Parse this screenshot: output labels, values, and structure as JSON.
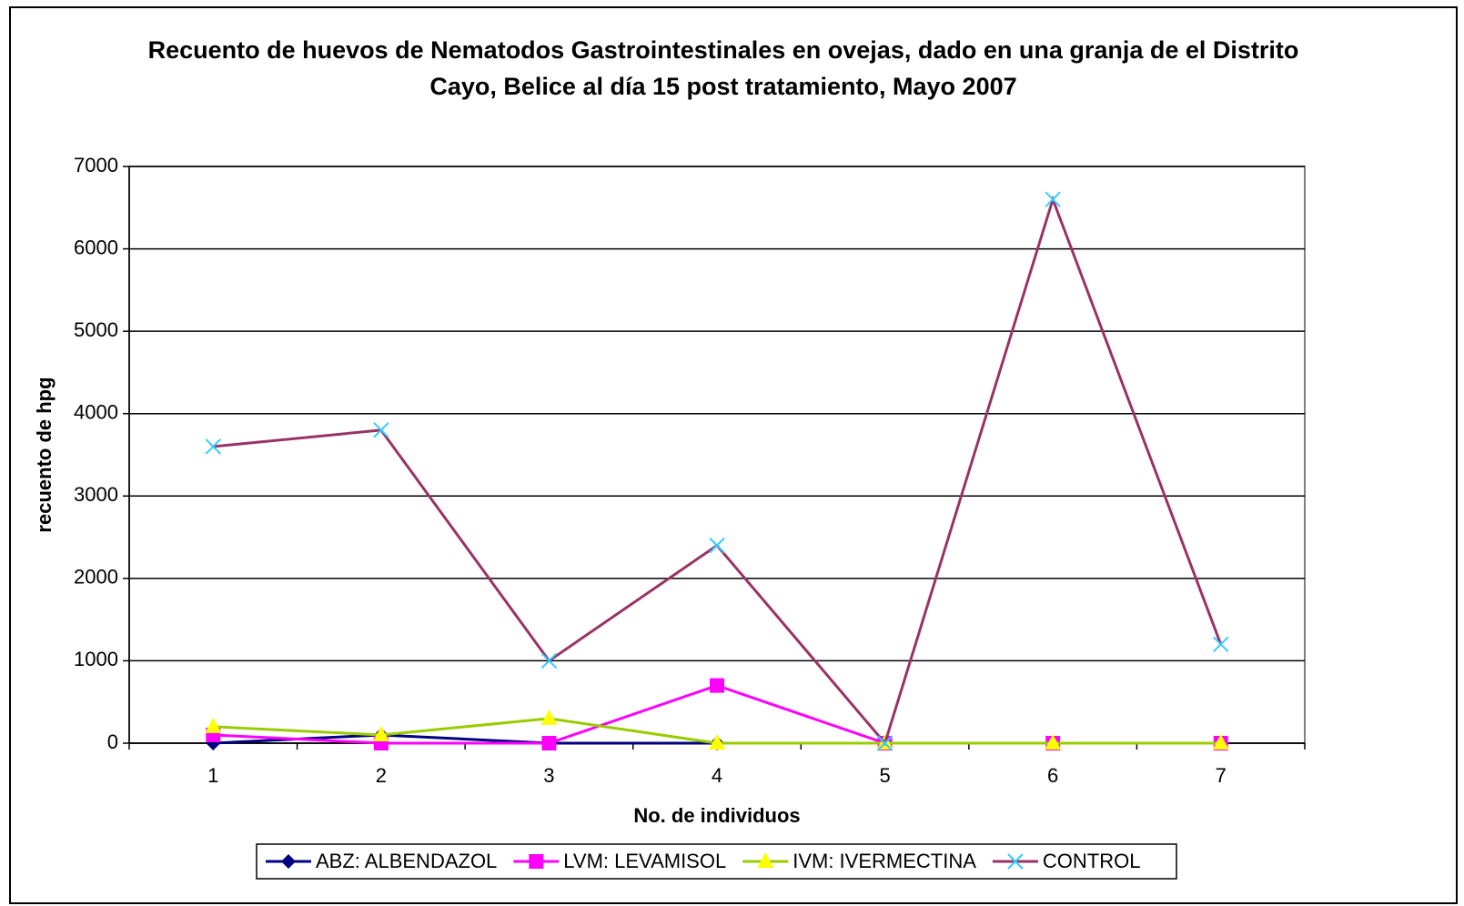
{
  "chart_data": {
    "type": "line",
    "title": "Recuento de huevos de Nematodos Gastrointestinales en ovejas, dado en una granja de el Distrito Cayo, Belice al día 15 post tratamiento, Mayo 2007",
    "x_label": "No. de individuos",
    "y_label": "recuento de hpg",
    "categories": [
      "1",
      "2",
      "3",
      "4",
      "5",
      "6",
      "7"
    ],
    "series": [
      {
        "name": "ABZ: ALBENDAZOL",
        "color": "#000080",
        "marker": "diamond",
        "values": [
          0,
          100,
          0,
          0,
          0,
          0,
          0
        ]
      },
      {
        "name": "LVM: LEVAMISOL",
        "color": "#ff00ff",
        "marker": "square",
        "values": [
          100,
          0,
          0,
          700,
          0,
          0,
          0
        ]
      },
      {
        "name": "IVM: IVERMECTINA",
        "color": "#99cc00",
        "marker_color": "#ffff00",
        "marker": "triangle",
        "values": [
          200,
          100,
          300,
          0,
          0,
          0,
          0
        ]
      },
      {
        "name": "CONTROL",
        "color": "#993366",
        "marker_color": "#33ccff",
        "marker": "x",
        "values": [
          3600,
          3800,
          1000,
          2400,
          0,
          6600,
          1200
        ]
      }
    ],
    "ylim": [
      0,
      7000
    ],
    "yticks": [
      0,
      1000,
      2000,
      3000,
      4000,
      5000,
      6000,
      7000
    ],
    "grid": true,
    "legend": "bottom"
  }
}
